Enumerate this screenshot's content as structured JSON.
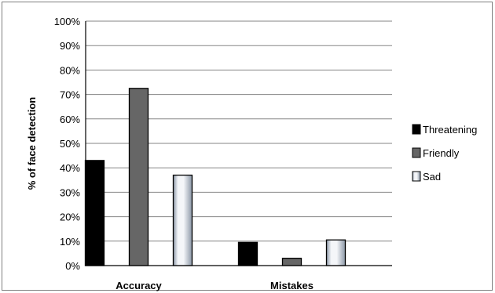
{
  "chart_data": {
    "type": "bar",
    "title": "",
    "xlabel": "",
    "ylabel": "% of face detection",
    "categories": [
      "Accuracy",
      "Mistakes"
    ],
    "series": [
      {
        "name": "Threatening",
        "values": [
          43,
          9.5
        ],
        "fill": "black"
      },
      {
        "name": "Friendly",
        "values": [
          72.5,
          3
        ],
        "fill": "gray"
      },
      {
        "name": "Sad",
        "values": [
          37,
          10.5
        ],
        "fill": "silver-gradient"
      }
    ],
    "ylim": [
      0,
      100
    ],
    "yticks": [
      0,
      10,
      20,
      30,
      40,
      50,
      60,
      70,
      80,
      90,
      100
    ],
    "ytick_labels": [
      "0%",
      "10%",
      "20%",
      "30%",
      "40%",
      "50%",
      "60%",
      "70%",
      "80%",
      "90%",
      "100%"
    ],
    "grid": true,
    "legend": "right",
    "colors": {
      "threatening": "#000000",
      "friendly": "#666666",
      "sad_dark": "#8a96a6",
      "sad_light": "#f4f6f9",
      "grid": "#868686",
      "frame": "#7f7f7f"
    }
  }
}
